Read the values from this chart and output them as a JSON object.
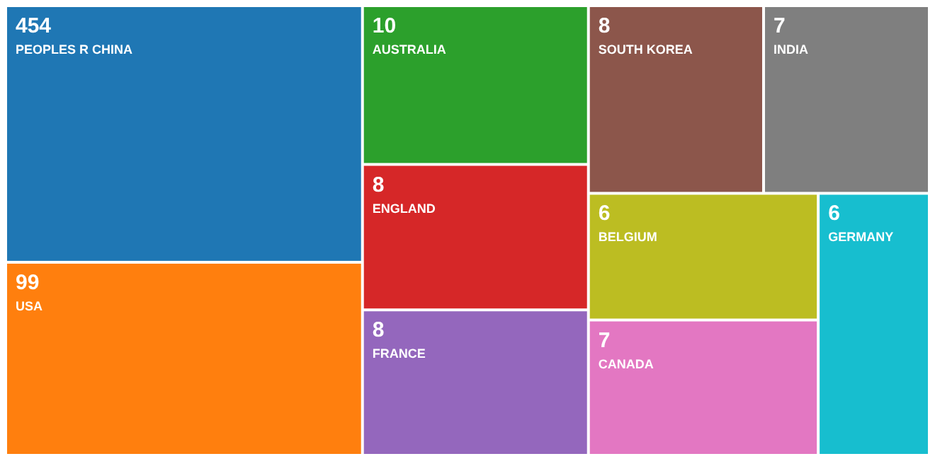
{
  "chart_data": {
    "type": "other",
    "categories": [
      "PEOPLES R CHINA",
      "USA",
      "AUSTRALIA",
      "ENGLAND",
      "FRANCE",
      "SOUTH KOREA",
      "INDIA",
      "BELGIUM",
      "CANADA",
      "GERMANY"
    ],
    "values": [
      454,
      99,
      10,
      8,
      8,
      8,
      7,
      6,
      7,
      6
    ],
    "colors": [
      "#1f77b4",
      "#ff7f0e",
      "#2ca02c",
      "#d62728",
      "#9467bd",
      "#8c564b",
      "#7f7f7f",
      "#bcbd22",
      "#e377c2",
      "#17becf"
    ],
    "data_labels": true
  }
}
